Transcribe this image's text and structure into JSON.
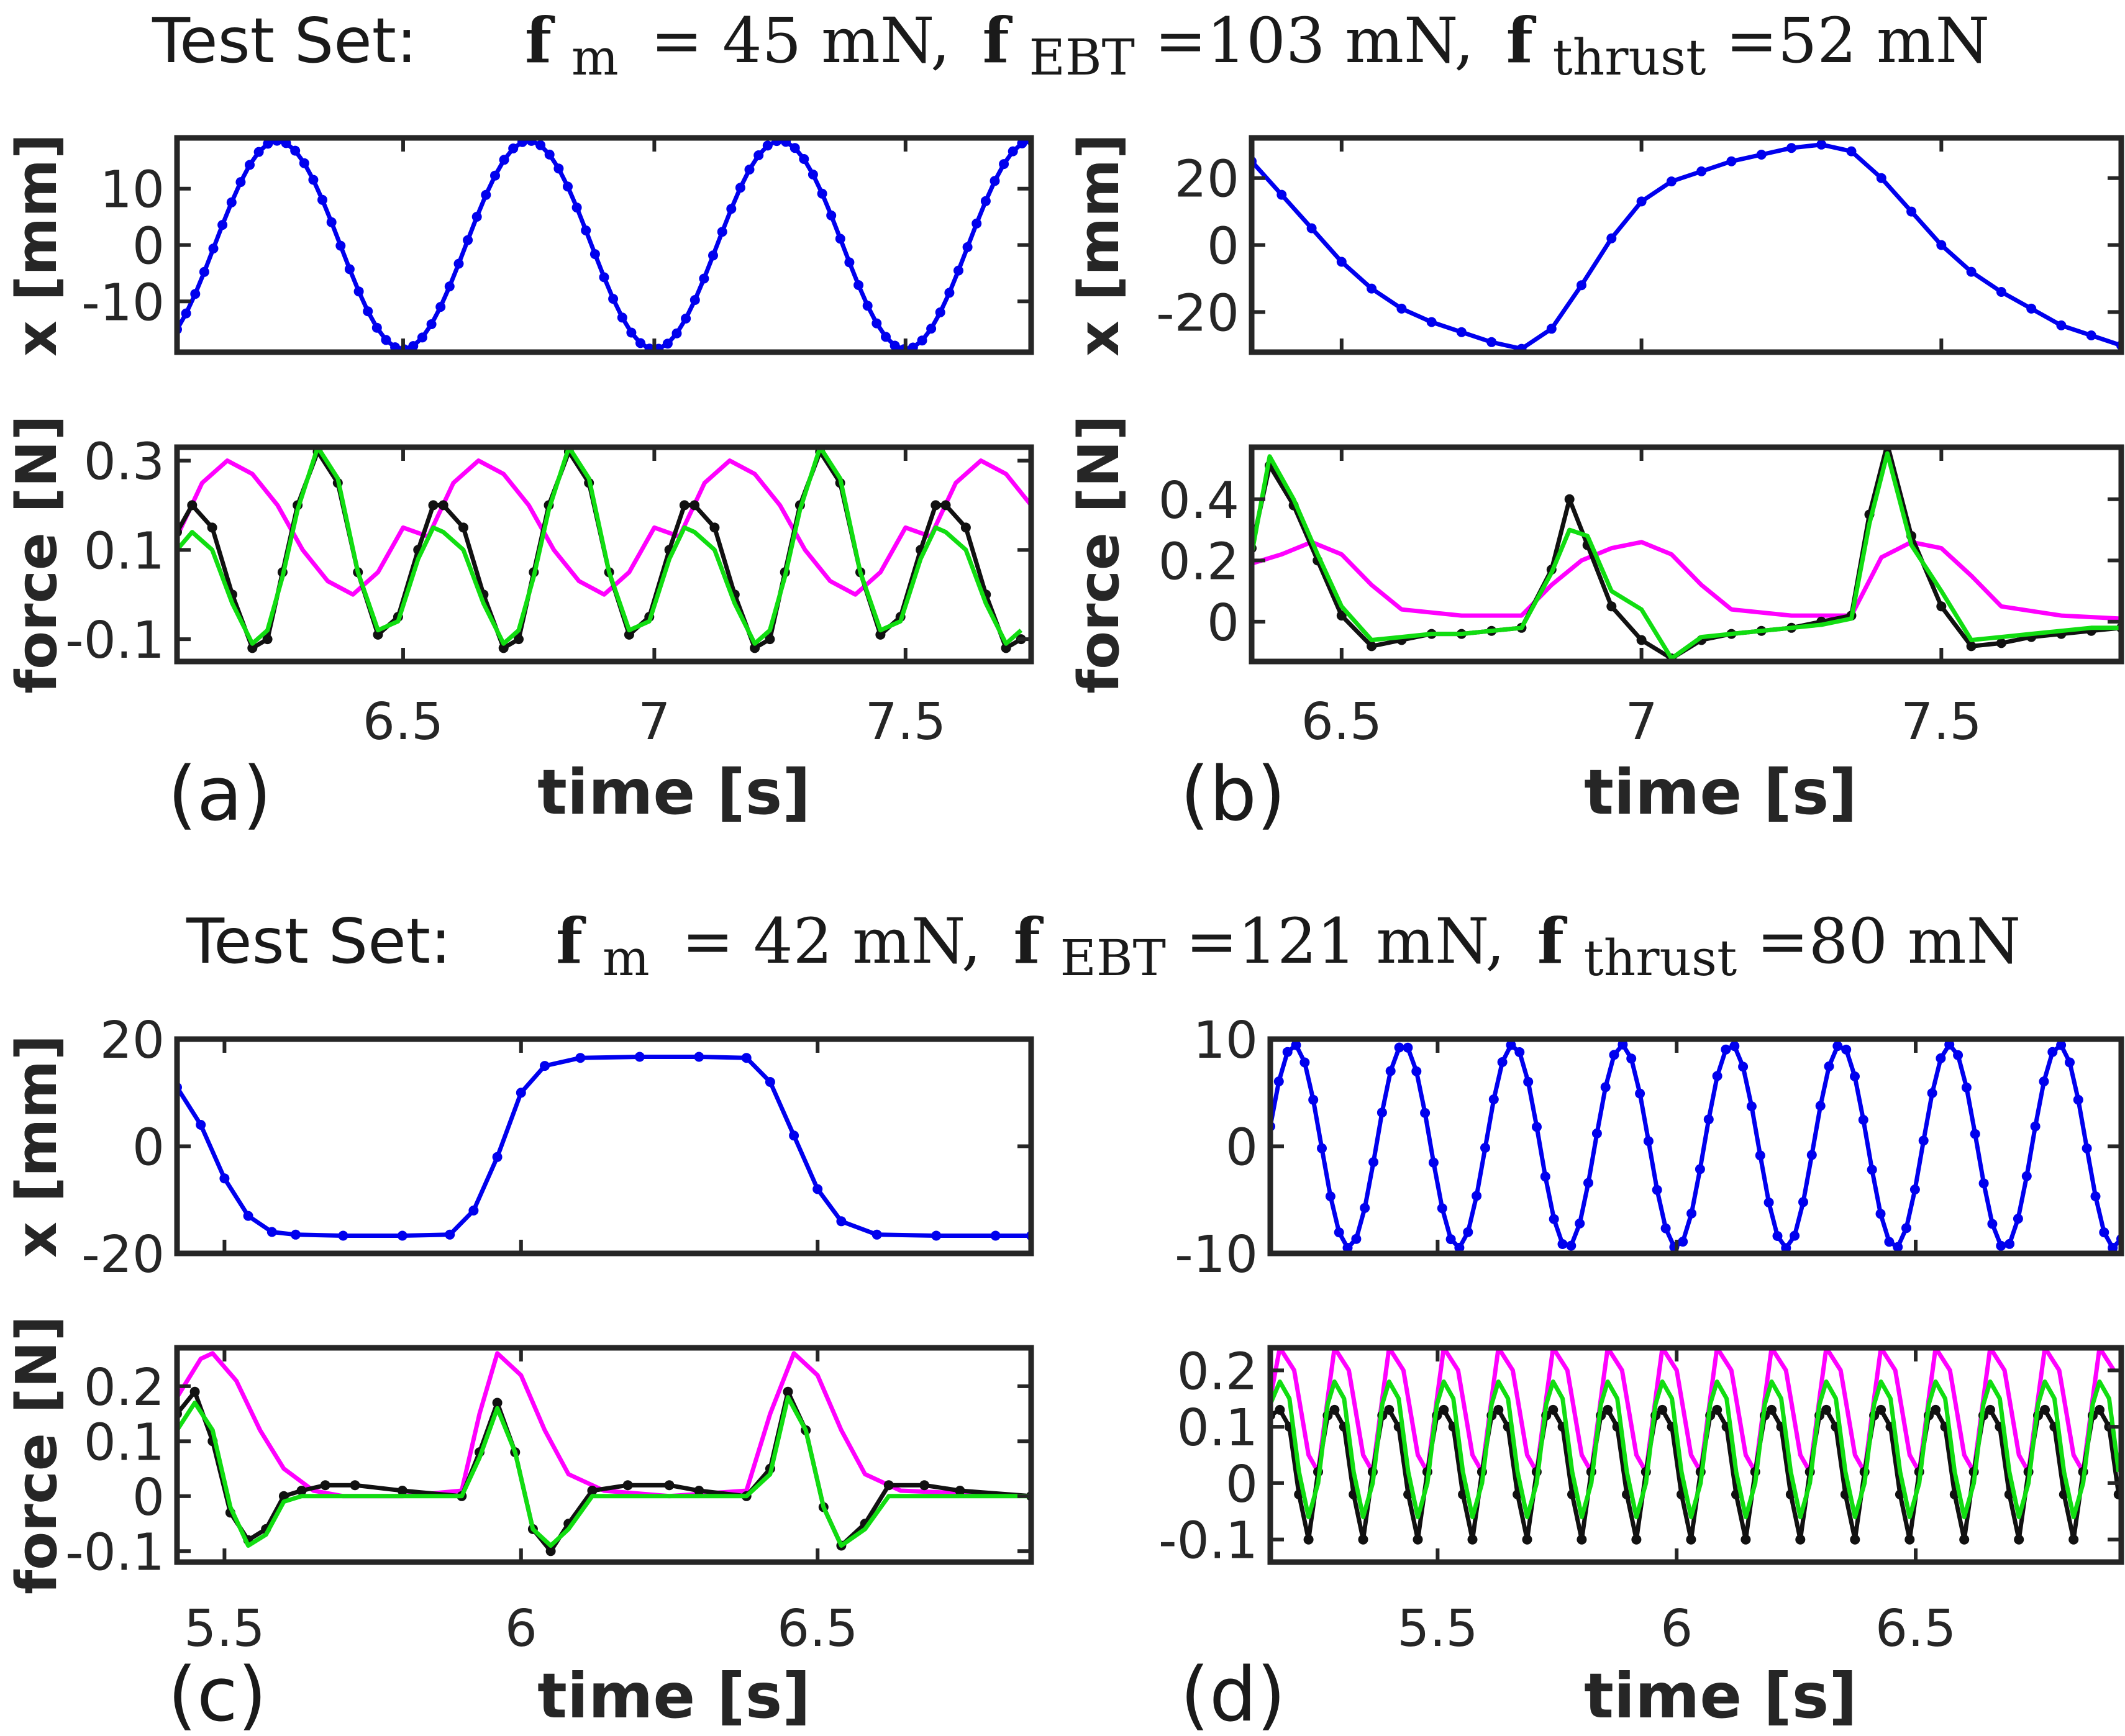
{
  "header": {
    "top": {
      "lead": "Test Set:",
      "fm_value": "= 45 mN,",
      "febt_value": "=103 mN,",
      "fthrust_value": "=52 mN"
    },
    "bottom": {
      "lead": "Test Set:",
      "fm_value": "= 42 mN,",
      "febt_value": "=121 mN,",
      "fthrust_value": "=80 mN"
    },
    "symbol_f": "f",
    "sub_m": "m",
    "sub_ebt": "EBT",
    "sub_thrust": "thrust"
  },
  "labels": {
    "x_axis": "x [mm]",
    "force_axis": "force [N]",
    "time_axis": "time [s]"
  },
  "colors": {
    "position": "#0000ee",
    "measured": "#111111",
    "model_green": "#11dd11",
    "model_magenta": "#ff00ff",
    "frame": "#262626"
  },
  "chart_data": [
    {
      "panel": "(a)",
      "type": "line",
      "xlim": [
        6.05,
        7.75
      ],
      "xticks": [
        6.5,
        7,
        7.5
      ],
      "xticklabels": [
        "6.5",
        "7",
        "7.5"
      ],
      "position_subplot": {
        "ylim": [
          -19,
          19
        ],
        "yticks": [
          10,
          0,
          -10
        ],
        "yticklabels": [
          "10",
          "0",
          "-10"
        ],
        "series": [
          {
            "name": "x",
            "color": "position",
            "markers": true,
            "model": "sine",
            "period": 0.5,
            "amplitude": 18.5,
            "peak_time": 6.25
          }
        ]
      },
      "force_subplot": {
        "ylim": [
          -0.15,
          0.33
        ],
        "yticks": [
          0.3,
          0.1,
          -0.1
        ],
        "yticklabels": [
          "0.3",
          "0.1",
          "-0.1"
        ],
        "series": [
          {
            "color": "model_magenta",
            "markers": false,
            "x": [
              6.05,
              6.1,
              6.15,
              6.2,
              6.25,
              6.3,
              6.35,
              6.4,
              6.45,
              6.5
            ],
            "y": [
              0.13,
              0.25,
              0.3,
              0.27,
              0.2,
              0.1,
              0.03,
              0.0,
              0.05,
              0.15
            ],
            "repeat": 0.5
          },
          {
            "color": "measured",
            "markers": true,
            "x": [
              6.05,
              6.08,
              6.12,
              6.16,
              6.2,
              6.23,
              6.26,
              6.29,
              6.33,
              6.37,
              6.41,
              6.45,
              6.49,
              6.53,
              6.56
            ],
            "y": [
              0.14,
              0.2,
              0.15,
              0.0,
              -0.12,
              -0.1,
              0.05,
              0.2,
              0.32,
              0.25,
              0.05,
              -0.09,
              -0.05,
              0.1,
              0.2
            ],
            "repeat": 0.5
          },
          {
            "color": "model_green",
            "markers": false,
            "x": [
              6.05,
              6.08,
              6.12,
              6.16,
              6.2,
              6.23,
              6.26,
              6.29,
              6.33,
              6.37,
              6.41,
              6.45,
              6.49,
              6.53,
              6.56
            ],
            "y": [
              0.1,
              0.14,
              0.1,
              -0.02,
              -0.11,
              -0.08,
              0.04,
              0.19,
              0.33,
              0.26,
              0.05,
              -0.08,
              -0.06,
              0.08,
              0.15
            ],
            "repeat": 0.5
          }
        ]
      }
    },
    {
      "panel": "(b)",
      "type": "line",
      "xlim": [
        6.35,
        7.8
      ],
      "xticks": [
        6.5,
        7,
        7.5
      ],
      "xticklabels": [
        "6.5",
        "7",
        "7.5"
      ],
      "position_subplot": {
        "ylim": [
          -32,
          32
        ],
        "yticks": [
          20,
          0,
          -20
        ],
        "yticklabels": [
          "20",
          "0",
          "-20"
        ],
        "series": [
          {
            "name": "x",
            "color": "position",
            "markers": true,
            "x": [
              6.35,
              6.4,
              6.45,
              6.5,
              6.55,
              6.6,
              6.65,
              6.7,
              6.75,
              6.8,
              6.85,
              6.9,
              6.95,
              7.0,
              7.05,
              7.1,
              7.15,
              7.2,
              7.25,
              7.3,
              7.35,
              7.4,
              7.45,
              7.5,
              7.55,
              7.6,
              7.65,
              7.7,
              7.75,
              7.8
            ],
            "y": [
              25,
              15,
              5,
              -5,
              -13,
              -19,
              -23,
              -26,
              -29,
              -31,
              -25,
              -12,
              2,
              13,
              19,
              22,
              25,
              27,
              29,
              30,
              28,
              20,
              10,
              0,
              -8,
              -14,
              -19,
              -24,
              -27,
              -30
            ]
          }
        ]
      },
      "force_subplot": {
        "ylim": [
          -0.13,
          0.57
        ],
        "yticks": [
          0.4,
          0.2,
          0
        ],
        "yticklabels": [
          "0.4",
          "0.2",
          "0"
        ],
        "series": [
          {
            "color": "model_magenta",
            "markers": false,
            "x": [
              6.35,
              6.4,
              6.45,
              6.5,
              6.55,
              6.6,
              6.7,
              6.8,
              6.85,
              6.9,
              6.95,
              7.0,
              7.05,
              7.1,
              7.15,
              7.25,
              7.35,
              7.4,
              7.45,
              7.5,
              7.55,
              7.6,
              7.7,
              7.8
            ],
            "y": [
              0.19,
              0.22,
              0.26,
              0.22,
              0.12,
              0.04,
              0.02,
              0.02,
              0.12,
              0.2,
              0.24,
              0.26,
              0.22,
              0.12,
              0.04,
              0.02,
              0.02,
              0.21,
              0.26,
              0.24,
              0.15,
              0.05,
              0.02,
              0.01
            ]
          },
          {
            "color": "measured",
            "markers": true,
            "x": [
              6.35,
              6.38,
              6.42,
              6.46,
              6.5,
              6.55,
              6.6,
              6.65,
              6.7,
              6.75,
              6.8,
              6.85,
              6.88,
              6.91,
              6.95,
              7.0,
              7.05,
              7.1,
              7.15,
              7.2,
              7.25,
              7.3,
              7.35,
              7.38,
              7.41,
              7.45,
              7.5,
              7.55,
              7.6,
              7.65,
              7.7,
              7.75,
              7.8
            ],
            "y": [
              0.24,
              0.51,
              0.38,
              0.2,
              0.02,
              -0.08,
              -0.06,
              -0.04,
              -0.04,
              -0.03,
              -0.02,
              0.17,
              0.4,
              0.25,
              0.05,
              -0.06,
              -0.12,
              -0.06,
              -0.04,
              -0.03,
              -0.02,
              0.0,
              0.02,
              0.35,
              0.58,
              0.28,
              0.05,
              -0.08,
              -0.07,
              -0.05,
              -0.04,
              -0.03,
              -0.02
            ]
          },
          {
            "color": "model_green",
            "markers": false,
            "x": [
              6.35,
              6.38,
              6.42,
              6.46,
              6.5,
              6.55,
              6.6,
              6.65,
              6.7,
              6.75,
              6.8,
              6.85,
              6.88,
              6.91,
              6.95,
              7.0,
              7.05,
              7.1,
              7.15,
              7.2,
              7.25,
              7.3,
              7.35,
              7.38,
              7.41,
              7.45,
              7.5,
              7.55,
              7.6,
              7.65,
              7.7,
              7.75,
              7.8
            ],
            "y": [
              0.22,
              0.54,
              0.4,
              0.22,
              0.05,
              -0.06,
              -0.05,
              -0.04,
              -0.04,
              -0.03,
              -0.02,
              0.16,
              0.3,
              0.28,
              0.1,
              0.04,
              -0.12,
              -0.05,
              -0.04,
              -0.03,
              -0.02,
              -0.01,
              0.01,
              0.32,
              0.55,
              0.25,
              0.1,
              -0.06,
              -0.05,
              -0.04,
              -0.03,
              -0.02,
              -0.02
            ]
          }
        ]
      }
    },
    {
      "panel": "(c)",
      "type": "line",
      "xlim": [
        5.42,
        6.86
      ],
      "xticks": [
        5.5,
        6,
        6.5
      ],
      "xticklabels": [
        "5.5",
        "6",
        "6.5"
      ],
      "position_subplot": {
        "ylim": [
          -20,
          20
        ],
        "yticks": [
          20,
          0,
          -20
        ],
        "yticklabels": [
          "20",
          "0",
          "-20"
        ],
        "series": [
          {
            "name": "x",
            "color": "position",
            "markers": true,
            "x": [
              5.42,
              5.46,
              5.5,
              5.54,
              5.58,
              5.62,
              5.7,
              5.8,
              5.88,
              5.92,
              5.96,
              6.0,
              6.04,
              6.1,
              6.2,
              6.3,
              6.38,
              6.42,
              6.46,
              6.5,
              6.54,
              6.6,
              6.7,
              6.8,
              6.86
            ],
            "y": [
              11,
              4,
              -6,
              -13,
              -16,
              -16.5,
              -16.7,
              -16.7,
              -16.5,
              -12,
              -2,
              10,
              15,
              16.5,
              16.7,
              16.7,
              16.5,
              12,
              2,
              -8,
              -14,
              -16.5,
              -16.7,
              -16.7,
              -16.7
            ]
          }
        ]
      },
      "force_subplot": {
        "ylim": [
          -0.12,
          0.27
        ],
        "yticks": [
          0.2,
          0.1,
          0,
          -0.1
        ],
        "yticklabels": [
          "0.2",
          "0.1",
          "0",
          "-0.1"
        ],
        "series": [
          {
            "color": "model_magenta",
            "markers": false,
            "x": [
              5.42,
              5.46,
              5.48,
              5.52,
              5.56,
              5.6,
              5.65,
              5.7,
              5.8,
              5.9,
              5.93,
              5.96,
              6.0,
              6.04,
              6.08,
              6.14,
              6.25,
              6.38,
              6.42,
              6.46,
              6.5,
              6.54,
              6.58,
              6.64,
              6.86
            ],
            "y": [
              0.18,
              0.25,
              0.26,
              0.21,
              0.12,
              0.05,
              0.01,
              0.0,
              0.0,
              0.01,
              0.15,
              0.26,
              0.22,
              0.12,
              0.04,
              0.01,
              0.0,
              0.01,
              0.15,
              0.26,
              0.22,
              0.12,
              0.04,
              0.01,
              0.0
            ]
          },
          {
            "color": "measured",
            "markers": true,
            "x": [
              5.42,
              5.45,
              5.48,
              5.51,
              5.54,
              5.57,
              5.6,
              5.63,
              5.67,
              5.72,
              5.8,
              5.9,
              5.93,
              5.96,
              5.99,
              6.02,
              6.05,
              6.08,
              6.12,
              6.18,
              6.25,
              6.3,
              6.38,
              6.42,
              6.45,
              6.48,
              6.51,
              6.54,
              6.58,
              6.62,
              6.68,
              6.74,
              6.86
            ],
            "y": [
              0.15,
              0.19,
              0.1,
              -0.03,
              -0.08,
              -0.06,
              0.0,
              0.01,
              0.02,
              0.02,
              0.01,
              0.0,
              0.08,
              0.17,
              0.08,
              -0.06,
              -0.1,
              -0.05,
              0.01,
              0.02,
              0.02,
              0.01,
              0.0,
              0.05,
              0.19,
              0.12,
              -0.02,
              -0.09,
              -0.05,
              0.02,
              0.02,
              0.01,
              0.0
            ]
          },
          {
            "color": "model_green",
            "markers": false,
            "x": [
              5.42,
              5.45,
              5.48,
              5.51,
              5.54,
              5.57,
              5.6,
              5.63,
              5.67,
              5.72,
              5.8,
              5.9,
              5.93,
              5.96,
              5.99,
              6.02,
              6.05,
              6.08,
              6.12,
              6.18,
              6.25,
              6.3,
              6.38,
              6.42,
              6.45,
              6.48,
              6.51,
              6.54,
              6.58,
              6.62,
              6.68,
              6.74,
              6.86
            ],
            "y": [
              0.12,
              0.17,
              0.12,
              -0.02,
              -0.09,
              -0.07,
              -0.01,
              0.0,
              0.0,
              0.0,
              0.0,
              0.0,
              0.07,
              0.16,
              0.08,
              -0.06,
              -0.09,
              -0.06,
              0.0,
              0.0,
              0.0,
              0.0,
              0.0,
              0.04,
              0.18,
              0.12,
              -0.02,
              -0.09,
              -0.06,
              0.0,
              0.0,
              0.0,
              0.0
            ]
          }
        ]
      }
    },
    {
      "panel": "(d)",
      "type": "line",
      "xlim": [
        5.15,
        6.93
      ],
      "xticks": [
        5.5,
        6,
        6.5
      ],
      "xticklabels": [
        "5.5",
        "6",
        "6.5"
      ],
      "position_subplot": {
        "ylim": [
          -10,
          10
        ],
        "yticks": [
          10,
          0,
          -10
        ],
        "yticklabels": [
          "10",
          "0",
          "-10"
        ],
        "series": [
          {
            "name": "x",
            "color": "position",
            "markers": true,
            "model": "sine",
            "period": 0.2286,
            "amplitude": 9.5,
            "peak_time": 5.2
          }
        ]
      },
      "force_subplot": {
        "ylim": [
          -0.14,
          0.24
        ],
        "yticks": [
          0.2,
          0.1,
          0,
          -0.1
        ],
        "yticklabels": [
          "0.2",
          "0.1",
          "0",
          "-0.1"
        ],
        "series": [
          {
            "color": "model_magenta",
            "markers": false,
            "x": [
              5.15,
              5.17,
              5.2,
              5.23,
              5.25,
              5.27
            ],
            "y": [
              0.15,
              0.24,
              0.2,
              0.05,
              0.02,
              0.15
            ],
            "repeat": 0.1143
          },
          {
            "color": "measured",
            "markers": true,
            "x": [
              5.15,
              5.17,
              5.19,
              5.21,
              5.23,
              5.25,
              5.27
            ],
            "y": [
              0.12,
              0.13,
              0.1,
              -0.02,
              -0.1,
              0.02,
              0.12
            ],
            "repeat": 0.1143
          },
          {
            "color": "model_green",
            "markers": false,
            "x": [
              5.15,
              5.17,
              5.19,
              5.21,
              5.23,
              5.25,
              5.27
            ],
            "y": [
              0.14,
              0.18,
              0.15,
              0.02,
              -0.06,
              0.0,
              0.14
            ],
            "repeat": 0.1143
          }
        ]
      }
    }
  ]
}
